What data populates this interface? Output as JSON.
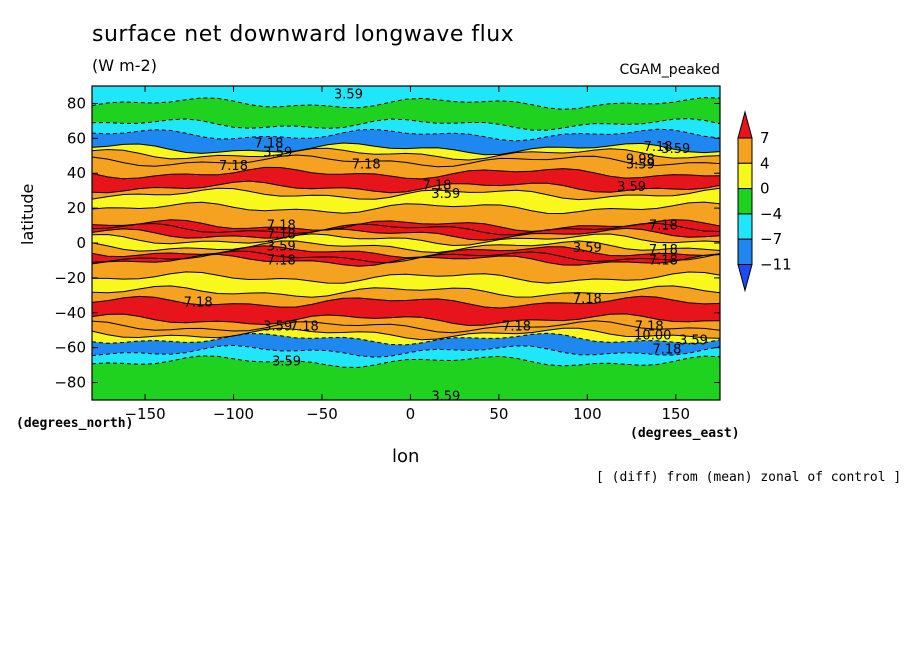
{
  "chart_data": {
    "type": "heatmap",
    "title": "surface net downward longwave flux",
    "units": "(W m-2)",
    "case_label": "CGAM_peaked",
    "xlabel": "lon",
    "ylabel": "latitude",
    "x_units": "(degrees_east)",
    "y_units": "(degrees_north)",
    "footnote": "[ (diff) from (mean) zonal of control ]",
    "xlim": [
      -180,
      175
    ],
    "ylim": [
      -90,
      90
    ],
    "x_ticks": [
      -150,
      -100,
      -50,
      0,
      50,
      100,
      150
    ],
    "y_ticks": [
      -80,
      -60,
      -40,
      -20,
      0,
      20,
      40,
      60,
      80
    ],
    "colorbar": {
      "labels": [
        7,
        4,
        0,
        -4,
        -7,
        -11
      ],
      "colors": [
        "#e8141b",
        "#f4a21f",
        "#f8f81c",
        "#1fd21f",
        "#1fe6f8",
        "#1e88f0",
        "#1e4cf0"
      ]
    },
    "zonal_bands": [
      {
        "lat": [
          80,
          90
        ],
        "value": -5
      },
      {
        "lat": [
          68,
          80
        ],
        "value": -4
      },
      {
        "lat": [
          62,
          68
        ],
        "value": -6
      },
      {
        "lat": [
          54,
          62
        ],
        "value": -9
      },
      {
        "lat": [
          51,
          54
        ],
        "value": 0
      },
      {
        "lat": [
          47,
          51
        ],
        "value": 5
      },
      {
        "lat": [
          40,
          47
        ],
        "value": 6
      },
      {
        "lat": [
          32,
          40
        ],
        "value": 7.5
      },
      {
        "lat": [
          28,
          32
        ],
        "value": 5
      },
      {
        "lat": [
          20,
          28
        ],
        "value": 2
      },
      {
        "lat": [
          10,
          20
        ],
        "value": 5
      },
      {
        "lat": [
          8,
          10
        ],
        "value": 7
      },
      {
        "lat": [
          5,
          8
        ],
        "value": 8
      },
      {
        "lat": [
          2,
          5
        ],
        "value": 5
      },
      {
        "lat": [
          -2,
          2
        ],
        "value": 2
      },
      {
        "lat": [
          -5,
          -2
        ],
        "value": 6
      },
      {
        "lat": [
          -8,
          -5
        ],
        "value": 8
      },
      {
        "lat": [
          -10,
          -8
        ],
        "value": 7
      },
      {
        "lat": [
          -20,
          -10
        ],
        "value": 5
      },
      {
        "lat": [
          -28,
          -20
        ],
        "value": 2
      },
      {
        "lat": [
          -34,
          -28
        ],
        "value": 5
      },
      {
        "lat": [
          -44,
          -34
        ],
        "value": 7.5
      },
      {
        "lat": [
          -48,
          -44
        ],
        "value": 6
      },
      {
        "lat": [
          -52,
          -48
        ],
        "value": 4
      },
      {
        "lat": [
          -55,
          -52
        ],
        "value": 0
      },
      {
        "lat": [
          -62,
          -55
        ],
        "value": -8
      },
      {
        "lat": [
          -68,
          -62
        ],
        "value": -6
      },
      {
        "lat": [
          -90,
          -68
        ],
        "value": -4
      }
    ],
    "contour_labels": [
      {
        "text": "3.59",
        "lon": -35,
        "lat": 85
      },
      {
        "text": "7.18",
        "lon": -80,
        "lat": 57
      },
      {
        "text": "3.59",
        "lon": -75,
        "lat": 52
      },
      {
        "text": "7.18",
        "lon": -100,
        "lat": 44
      },
      {
        "text": "7.18",
        "lon": -25,
        "lat": 45
      },
      {
        "text": "7.18",
        "lon": 15,
        "lat": 33
      },
      {
        "text": "3.59",
        "lon": 20,
        "lat": 28
      },
      {
        "text": "3.59",
        "lon": 125,
        "lat": 32
      },
      {
        "text": "7.18",
        "lon": 140,
        "lat": 55
      },
      {
        "text": "3.59",
        "lon": 150,
        "lat": 54
      },
      {
        "text": "9.98",
        "lon": 130,
        "lat": 48
      },
      {
        "text": "3.59",
        "lon": 130,
        "lat": 45
      },
      {
        "text": "7.18",
        "lon": -73,
        "lat": 10
      },
      {
        "text": "7.18",
        "lon": -73,
        "lat": 5
      },
      {
        "text": "3.59",
        "lon": -73,
        "lat": -2
      },
      {
        "text": "7.18",
        "lon": -73,
        "lat": -10
      },
      {
        "text": "3.59",
        "lon": 100,
        "lat": -3
      },
      {
        "text": "7.18",
        "lon": 143,
        "lat": 10
      },
      {
        "text": "7.18",
        "lon": 143,
        "lat": -4
      },
      {
        "text": "7.18",
        "lon": 143,
        "lat": -10
      },
      {
        "text": "7.18",
        "lon": -120,
        "lat": -34
      },
      {
        "text": "7.18",
        "lon": 100,
        "lat": -32
      },
      {
        "text": "3.59",
        "lon": -75,
        "lat": -48
      },
      {
        "text": "7.18",
        "lon": -60,
        "lat": -48
      },
      {
        "text": "7.18",
        "lon": 60,
        "lat": -48
      },
      {
        "text": "7.18",
        "lon": 135,
        "lat": -48
      },
      {
        "text": "10.00",
        "lon": 137,
        "lat": -53
      },
      {
        "text": "3.59",
        "lon": 160,
        "lat": -56
      },
      {
        "text": "7.18",
        "lon": 145,
        "lat": -61
      },
      {
        "text": "3.59",
        "lon": -70,
        "lat": -68
      },
      {
        "text": "3.59",
        "lon": 20,
        "lat": -88
      }
    ]
  }
}
